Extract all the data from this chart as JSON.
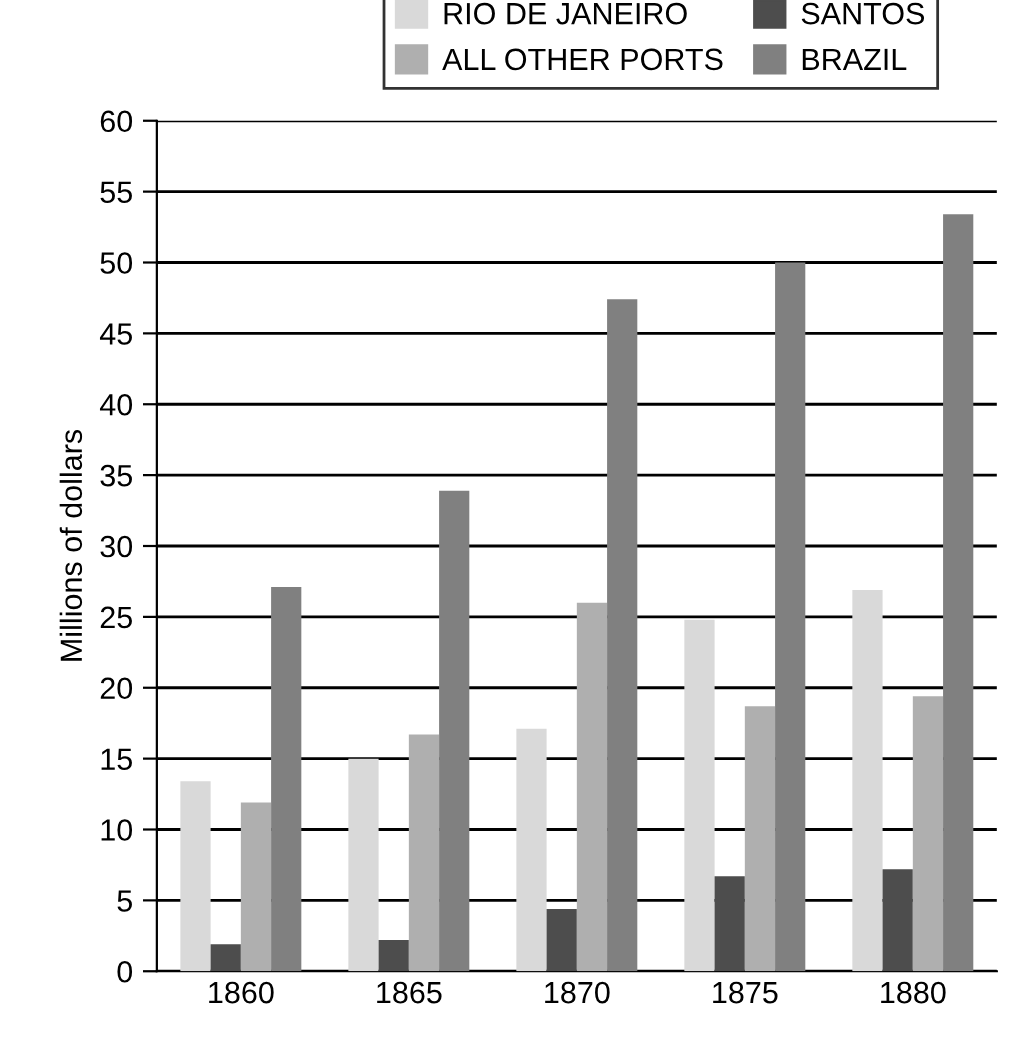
{
  "chart_data": {
    "type": "bar",
    "ylabel": "Millions of dollars",
    "categories": [
      "1860",
      "1865",
      "1870",
      "1875",
      "1880"
    ],
    "series": [
      {
        "name": "RIO DE JANEIRO",
        "color": "#d9d9d9",
        "values": [
          13.4,
          15.0,
          17.1,
          24.8,
          26.9
        ]
      },
      {
        "name": "SANTOS",
        "color": "#4d4d4d",
        "values": [
          1.9,
          2.2,
          4.4,
          6.7,
          7.2
        ]
      },
      {
        "name": "ALL OTHER PORTS",
        "color": "#afafaf",
        "values": [
          11.9,
          16.7,
          26.0,
          18.7,
          19.4
        ]
      },
      {
        "name": "BRAZIL",
        "color": "#808080",
        "values": [
          27.1,
          33.9,
          47.4,
          50.0,
          53.4
        ]
      }
    ],
    "ylim": [
      0,
      60
    ],
    "yticks": [
      0,
      5,
      10,
      15,
      20,
      25,
      30,
      35,
      40,
      45,
      50,
      55,
      60
    ],
    "grid": "y",
    "legend": "top"
  }
}
